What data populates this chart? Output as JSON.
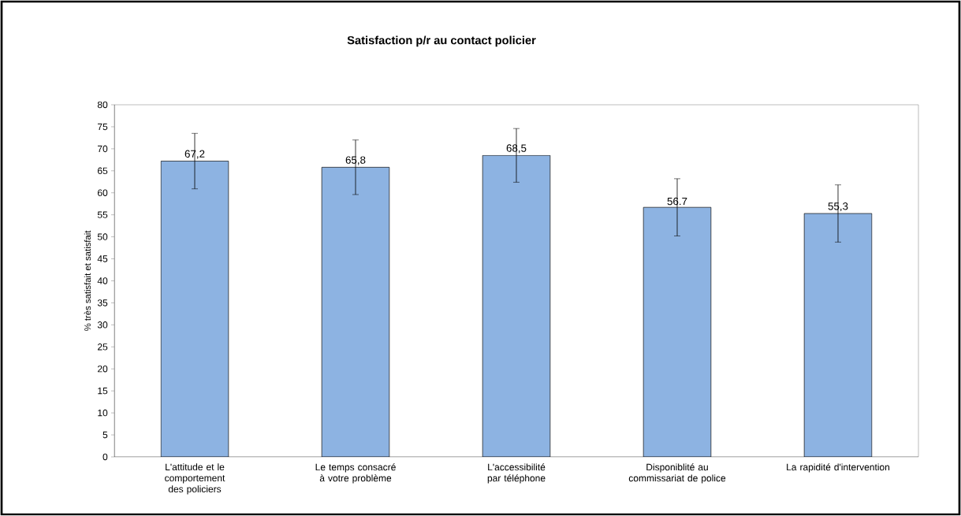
{
  "chart_data": {
    "type": "bar",
    "title": "Satisfaction p/r au contact policier",
    "ylabel": "% très satisfait et satisfait",
    "categories": [
      "L'attitude et le comportement des policiers",
      "Le temps consacré à votre problème",
      "L'accessibilité par téléphone",
      "Disponiblité au commissariat de police",
      "La rapidité d'intervention"
    ],
    "values": [
      67.2,
      65.8,
      68.5,
      56.7,
      55.3
    ],
    "value_labels": [
      "67,2",
      "65,8",
      "68,5",
      "56.7",
      "55,3"
    ],
    "errors": [
      6.3,
      6.2,
      6.1,
      6.5,
      6.5
    ],
    "color": "#8db3e2",
    "ylim": [
      0,
      80
    ],
    "yticks": [
      0,
      5,
      10,
      15,
      20,
      25,
      30,
      35,
      40,
      45,
      50,
      55,
      60,
      65,
      70,
      75,
      80
    ],
    "grid": false
  }
}
